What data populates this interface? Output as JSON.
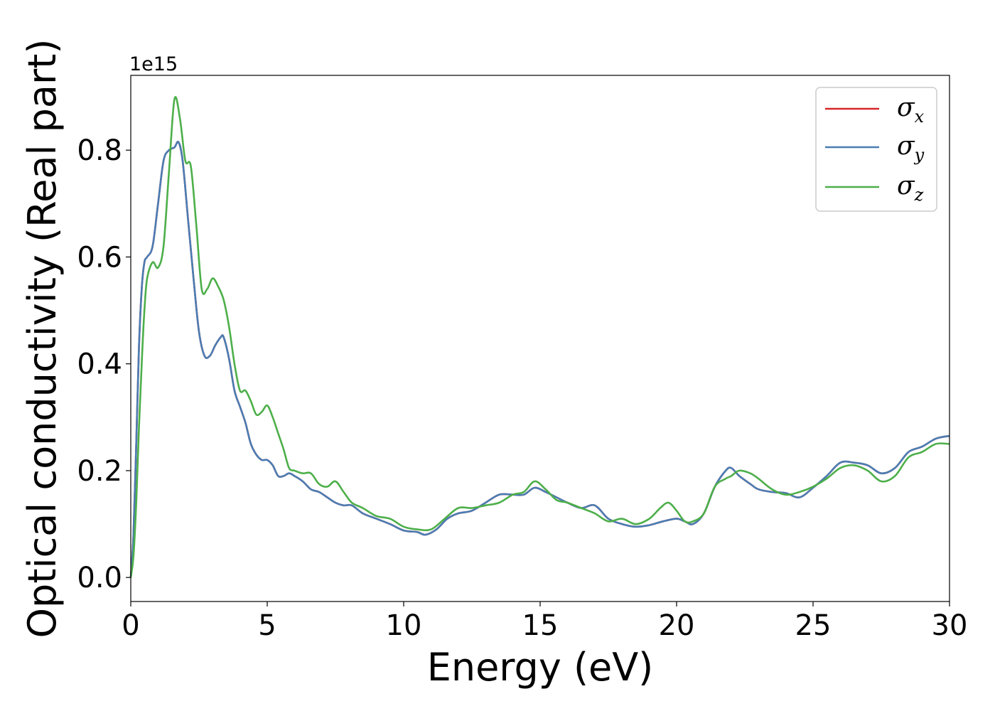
{
  "chart_data": {
    "type": "line",
    "title": "",
    "xlabel": "Energy (eV)",
    "ylabel": "Optical conductivity (Real part)",
    "y_offset_label": "1e15",
    "xlim": [
      0,
      30
    ],
    "ylim": [
      -0.045,
      0.94
    ],
    "x_ticks": [
      0,
      5,
      10,
      15,
      20,
      25,
      30
    ],
    "x_tick_labels": [
      "0",
      "5",
      "10",
      "15",
      "20",
      "25",
      "30"
    ],
    "y_ticks": [
      0.0,
      0.2,
      0.4,
      0.6,
      0.8
    ],
    "y_tick_labels": [
      "0.0",
      "0.2",
      "0.4",
      "0.6",
      "0.8"
    ],
    "grid": false,
    "legend": "top-right",
    "series": [
      {
        "name": "σx",
        "sym": "σ",
        "sub": "x",
        "color": "#d62728",
        "x": [
          0,
          0.1,
          0.2,
          0.3,
          0.4,
          0.5,
          0.6,
          0.8,
          1.0,
          1.2,
          1.4,
          1.6,
          1.75,
          1.9,
          2.1,
          2.3,
          2.5,
          2.7,
          2.9,
          3.1,
          3.3,
          3.4,
          3.6,
          3.8,
          4.0,
          4.2,
          4.4,
          4.6,
          4.8,
          5.0,
          5.2,
          5.4,
          5.6,
          5.8,
          6.0,
          6.3,
          6.6,
          6.9,
          7.2,
          7.5,
          7.8,
          8.1,
          8.5,
          9.0,
          9.5,
          10.0,
          10.5,
          10.8,
          11.2,
          11.6,
          12.0,
          12.5,
          13.0,
          13.5,
          14.0,
          14.4,
          14.8,
          15.2,
          15.6,
          16.0,
          16.5,
          17.0,
          17.5,
          18.0,
          18.5,
          19.0,
          19.5,
          20.0,
          20.3,
          20.6,
          21.0,
          21.4,
          21.8,
          22.0,
          22.3,
          22.7,
          23.0,
          23.5,
          24.0,
          24.5,
          25.0,
          25.5,
          26.0,
          26.5,
          27.0,
          27.5,
          28.0,
          28.5,
          29.0,
          29.5,
          30.0
        ],
        "y": [
          0.0,
          0.08,
          0.25,
          0.43,
          0.54,
          0.59,
          0.6,
          0.62,
          0.7,
          0.78,
          0.8,
          0.805,
          0.815,
          0.78,
          0.67,
          0.56,
          0.46,
          0.415,
          0.415,
          0.435,
          0.45,
          0.45,
          0.41,
          0.35,
          0.32,
          0.29,
          0.25,
          0.23,
          0.22,
          0.22,
          0.21,
          0.19,
          0.19,
          0.195,
          0.19,
          0.18,
          0.165,
          0.16,
          0.15,
          0.14,
          0.135,
          0.135,
          0.12,
          0.11,
          0.1,
          0.088,
          0.085,
          0.08,
          0.09,
          0.11,
          0.12,
          0.125,
          0.14,
          0.155,
          0.155,
          0.155,
          0.168,
          0.16,
          0.15,
          0.14,
          0.13,
          0.135,
          0.11,
          0.1,
          0.095,
          0.098,
          0.105,
          0.11,
          0.105,
          0.1,
          0.12,
          0.17,
          0.2,
          0.205,
          0.19,
          0.175,
          0.165,
          0.16,
          0.158,
          0.15,
          0.168,
          0.19,
          0.215,
          0.215,
          0.21,
          0.195,
          0.205,
          0.235,
          0.245,
          0.26,
          0.265
        ]
      },
      {
        "name": "σy",
        "sym": "σ",
        "sub": "y",
        "color": "#4a7db3",
        "x": [
          0,
          0.1,
          0.2,
          0.3,
          0.4,
          0.5,
          0.6,
          0.8,
          1.0,
          1.2,
          1.4,
          1.6,
          1.75,
          1.9,
          2.1,
          2.3,
          2.5,
          2.7,
          2.9,
          3.1,
          3.3,
          3.4,
          3.6,
          3.8,
          4.0,
          4.2,
          4.4,
          4.6,
          4.8,
          5.0,
          5.2,
          5.4,
          5.6,
          5.8,
          6.0,
          6.3,
          6.6,
          6.9,
          7.2,
          7.5,
          7.8,
          8.1,
          8.5,
          9.0,
          9.5,
          10.0,
          10.5,
          10.8,
          11.2,
          11.6,
          12.0,
          12.5,
          13.0,
          13.5,
          14.0,
          14.4,
          14.8,
          15.2,
          15.6,
          16.0,
          16.5,
          17.0,
          17.5,
          18.0,
          18.5,
          19.0,
          19.5,
          20.0,
          20.3,
          20.6,
          21.0,
          21.4,
          21.8,
          22.0,
          22.3,
          22.7,
          23.0,
          23.5,
          24.0,
          24.5,
          25.0,
          25.5,
          26.0,
          26.5,
          27.0,
          27.5,
          28.0,
          28.5,
          29.0,
          29.5,
          30.0
        ],
        "y": [
          0.0,
          0.08,
          0.25,
          0.43,
          0.54,
          0.59,
          0.6,
          0.62,
          0.7,
          0.78,
          0.8,
          0.805,
          0.815,
          0.78,
          0.67,
          0.56,
          0.46,
          0.415,
          0.415,
          0.435,
          0.45,
          0.45,
          0.41,
          0.35,
          0.32,
          0.29,
          0.25,
          0.23,
          0.22,
          0.22,
          0.21,
          0.19,
          0.19,
          0.195,
          0.19,
          0.18,
          0.165,
          0.16,
          0.15,
          0.14,
          0.135,
          0.135,
          0.12,
          0.11,
          0.1,
          0.088,
          0.085,
          0.08,
          0.09,
          0.11,
          0.12,
          0.125,
          0.14,
          0.155,
          0.155,
          0.155,
          0.168,
          0.16,
          0.15,
          0.14,
          0.13,
          0.135,
          0.11,
          0.1,
          0.095,
          0.098,
          0.105,
          0.11,
          0.105,
          0.1,
          0.12,
          0.17,
          0.2,
          0.205,
          0.19,
          0.175,
          0.165,
          0.16,
          0.158,
          0.15,
          0.168,
          0.19,
          0.215,
          0.215,
          0.21,
          0.195,
          0.205,
          0.235,
          0.245,
          0.26,
          0.265
        ]
      },
      {
        "name": "σz",
        "sym": "σ",
        "sub": "z",
        "color": "#4daf4a",
        "x": [
          0,
          0.1,
          0.2,
          0.3,
          0.4,
          0.5,
          0.6,
          0.8,
          1.0,
          1.2,
          1.4,
          1.6,
          1.8,
          2.0,
          2.2,
          2.4,
          2.6,
          2.8,
          3.0,
          3.2,
          3.4,
          3.6,
          3.8,
          4.0,
          4.2,
          4.4,
          4.6,
          4.8,
          5.0,
          5.2,
          5.4,
          5.6,
          5.8,
          6.0,
          6.3,
          6.6,
          6.9,
          7.2,
          7.5,
          7.8,
          8.1,
          8.5,
          9.0,
          9.5,
          10.0,
          10.5,
          11.0,
          11.5,
          12.0,
          12.5,
          13.0,
          13.5,
          14.0,
          14.4,
          14.8,
          15.2,
          15.6,
          16.0,
          16.5,
          17.0,
          17.5,
          18.0,
          18.5,
          19.0,
          19.4,
          19.7,
          20.0,
          20.3,
          20.6,
          21.0,
          21.4,
          21.8,
          22.0,
          22.3,
          22.7,
          23.0,
          23.5,
          24.0,
          24.5,
          25.0,
          25.5,
          26.0,
          26.5,
          27.0,
          27.5,
          28.0,
          28.5,
          29.0,
          29.5,
          30.0
        ],
        "y": [
          0.0,
          0.04,
          0.14,
          0.28,
          0.4,
          0.5,
          0.56,
          0.59,
          0.58,
          0.62,
          0.76,
          0.895,
          0.86,
          0.78,
          0.77,
          0.66,
          0.54,
          0.54,
          0.56,
          0.545,
          0.52,
          0.47,
          0.4,
          0.35,
          0.35,
          0.33,
          0.305,
          0.31,
          0.322,
          0.3,
          0.27,
          0.24,
          0.205,
          0.2,
          0.195,
          0.195,
          0.175,
          0.17,
          0.18,
          0.16,
          0.14,
          0.13,
          0.115,
          0.11,
          0.095,
          0.09,
          0.09,
          0.11,
          0.13,
          0.13,
          0.135,
          0.14,
          0.155,
          0.16,
          0.18,
          0.165,
          0.145,
          0.14,
          0.13,
          0.12,
          0.105,
          0.11,
          0.1,
          0.11,
          0.13,
          0.14,
          0.125,
          0.105,
          0.105,
          0.12,
          0.17,
          0.185,
          0.19,
          0.2,
          0.195,
          0.185,
          0.165,
          0.155,
          0.16,
          0.17,
          0.185,
          0.205,
          0.21,
          0.2,
          0.18,
          0.19,
          0.225,
          0.235,
          0.25,
          0.25
        ]
      }
    ]
  }
}
